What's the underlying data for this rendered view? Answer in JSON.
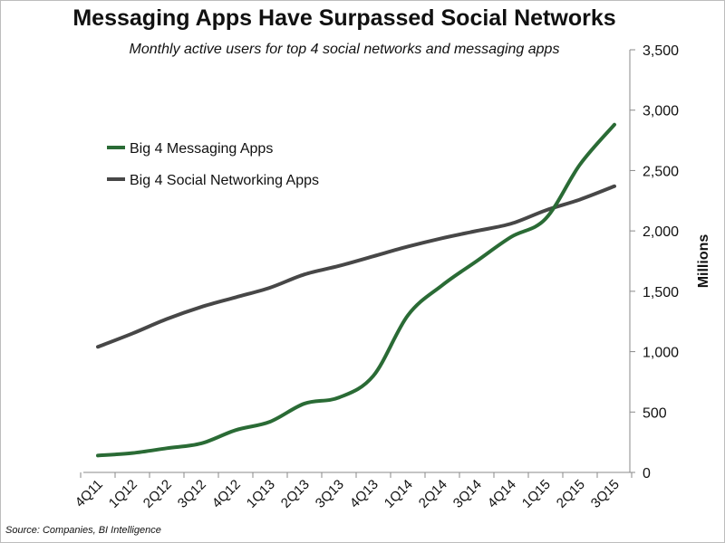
{
  "title": "Messaging Apps Have Surpassed Social Networks",
  "subtitle": "Monthly active users for top 4 social networks and messaging apps",
  "source": "Source: Companies, BI Intelligence",
  "colors": {
    "messaging": "#2a6b35",
    "social": "#474747",
    "axis": "#8a8a8a"
  },
  "chart_data": {
    "type": "line",
    "title": "Messaging Apps Have Surpassed Social Networks",
    "subtitle": "Monthly active users for top 4 social networks and messaging apps",
    "xlabel": "",
    "ylabel": "Millions",
    "ylim": [
      0,
      3500
    ],
    "y_axis_side": "right",
    "yticks": [
      "0",
      "500",
      "1,000",
      "1,500",
      "2,000",
      "2,500",
      "3,000",
      "3,500"
    ],
    "grid": false,
    "legend_position": "top-left",
    "categories": [
      "4Q11",
      "1Q12",
      "2Q12",
      "3Q12",
      "4Q12",
      "1Q13",
      "2Q13",
      "3Q13",
      "4Q13",
      "1Q14",
      "2Q14",
      "3Q14",
      "4Q14",
      "1Q15",
      "2Q15",
      "3Q15"
    ],
    "series": [
      {
        "name": "Big 4 Messaging Apps",
        "color": "#2a6b35",
        "values": [
          140,
          160,
          200,
          240,
          350,
          420,
          570,
          620,
          800,
          1300,
          1550,
          1750,
          1950,
          2100,
          2550,
          2880
        ]
      },
      {
        "name": "Big 4 Social Networking Apps",
        "color": "#474747",
        "values": [
          1040,
          1150,
          1270,
          1370,
          1450,
          1530,
          1640,
          1710,
          1790,
          1870,
          1940,
          2000,
          2060,
          2170,
          2260,
          2370
        ]
      }
    ]
  }
}
